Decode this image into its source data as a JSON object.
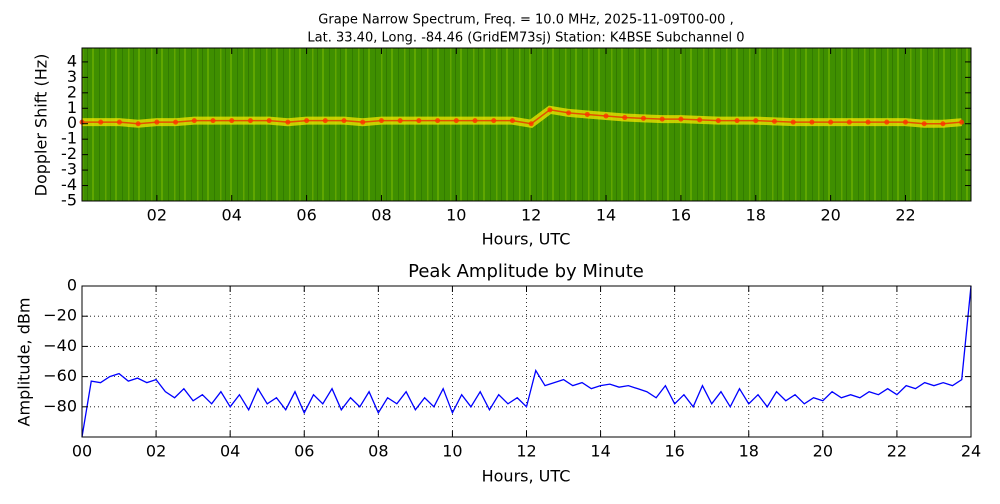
{
  "chart_data": [
    {
      "type": "spectrogram",
      "title": "Grape Narrow Spectrum, Freq. = 10.0 MHz, 2025-11-09T00-00 ,",
      "subtitle": "Lat.  33.40, Long. -84.46 (GridEM73sj) Station: K4BSE Subchannel 0",
      "x_label": "Hours, UTC",
      "y_label": "Doppler Shift (Hz)",
      "background_color": "#3f8f00",
      "color": "#f5e600",
      "x": [
        0,
        0.5,
        1,
        1.5,
        2,
        2.5,
        3,
        3.5,
        4,
        4.5,
        5,
        5.5,
        6,
        6.5,
        7,
        7.5,
        8,
        8.5,
        9,
        9.5,
        10,
        10.5,
        11,
        11.5,
        12,
        12.5,
        13,
        13.5,
        14,
        14.5,
        15,
        15.5,
        16,
        16.5,
        17,
        17.5,
        18,
        18.5,
        19,
        19.5,
        20,
        20.5,
        21,
        21.5,
        22,
        22.5,
        23,
        23.5
      ],
      "values": [
        0.1,
        0.1,
        0.1,
        0.0,
        0.1,
        0.1,
        0.2,
        0.2,
        0.2,
        0.2,
        0.2,
        0.1,
        0.2,
        0.2,
        0.2,
        0.1,
        0.2,
        0.2,
        0.2,
        0.2,
        0.2,
        0.2,
        0.2,
        0.2,
        0.0,
        0.9,
        0.7,
        0.6,
        0.5,
        0.4,
        0.35,
        0.3,
        0.3,
        0.25,
        0.2,
        0.2,
        0.2,
        0.15,
        0.1,
        0.1,
        0.1,
        0.1,
        0.1,
        0.1,
        0.1,
        0.0,
        0.0,
        0.1
      ],
      "xlim": [
        0,
        23.75
      ],
      "ylim": [
        -5,
        4.9
      ],
      "xticks": [
        {
          "value": 2,
          "label": "02"
        },
        {
          "value": 4,
          "label": "04"
        },
        {
          "value": 6,
          "label": "06"
        },
        {
          "value": 8,
          "label": "08"
        },
        10,
        12,
        14,
        16,
        18,
        20,
        22
      ],
      "yticks": [
        -5,
        -4,
        -3,
        -2,
        -1,
        0,
        1,
        2,
        3,
        4
      ],
      "grid": false
    },
    {
      "type": "line",
      "title": "Peak Amplitude by Minute",
      "x_label": "Hours, UTC",
      "y_label": "Amplitude, dBm",
      "color": "#0000ff",
      "x": [
        0,
        0.25,
        0.5,
        0.75,
        1,
        1.25,
        1.5,
        1.75,
        2,
        2.25,
        2.5,
        2.75,
        3,
        3.25,
        3.5,
        3.75,
        4,
        4.25,
        4.5,
        4.75,
        5,
        5.25,
        5.5,
        5.75,
        6,
        6.25,
        6.5,
        6.75,
        7,
        7.25,
        7.5,
        7.75,
        8,
        8.25,
        8.5,
        8.75,
        9,
        9.25,
        9.5,
        9.75,
        10,
        10.25,
        10.5,
        10.75,
        11,
        11.25,
        11.5,
        11.75,
        12,
        12.25,
        12.5,
        12.75,
        13,
        13.25,
        13.5,
        13.75,
        14,
        14.25,
        14.5,
        14.75,
        15,
        15.25,
        15.5,
        15.75,
        16,
        16.25,
        16.5,
        16.75,
        17,
        17.25,
        17.5,
        17.75,
        18,
        18.25,
        18.5,
        18.75,
        19,
        19.25,
        19.5,
        19.75,
        20,
        20.25,
        20.5,
        20.75,
        21,
        21.25,
        21.5,
        21.75,
        22,
        22.25,
        22.5,
        22.75,
        23,
        23.25,
        23.5,
        23.75,
        24
      ],
      "values": [
        -100,
        -63,
        -64,
        -60,
        -58,
        -63,
        -61,
        -64,
        -62,
        -70,
        -74,
        -68,
        -76,
        -72,
        -78,
        -70,
        -80,
        -72,
        -82,
        -68,
        -78,
        -74,
        -82,
        -70,
        -84,
        -72,
        -78,
        -68,
        -82,
        -74,
        -80,
        -70,
        -84,
        -74,
        -78,
        -70,
        -82,
        -74,
        -80,
        -68,
        -84,
        -72,
        -80,
        -70,
        -82,
        -72,
        -78,
        -74,
        -80,
        -56,
        -66,
        -64,
        -62,
        -66,
        -64,
        -68,
        -66,
        -65,
        -67,
        -66,
        -68,
        -70,
        -74,
        -66,
        -78,
        -72,
        -80,
        -66,
        -78,
        -70,
        -80,
        -68,
        -78,
        -72,
        -80,
        -70,
        -76,
        -72,
        -78,
        -74,
        -76,
        -70,
        -74,
        -72,
        -74,
        -70,
        -72,
        -68,
        -72,
        -66,
        -68,
        -64,
        -66,
        -64,
        -66,
        -62,
        0
      ],
      "xlim": [
        0,
        24
      ],
      "ylim": [
        -100,
        0
      ],
      "xticks": [
        {
          "value": 0,
          "label": "00"
        },
        {
          "value": 2,
          "label": "02"
        },
        {
          "value": 4,
          "label": "04"
        },
        {
          "value": 6,
          "label": "06"
        },
        {
          "value": 8,
          "label": "08"
        },
        10,
        12,
        14,
        16,
        18,
        20,
        22,
        24
      ],
      "yticks": [
        {
          "value": -80,
          "label": "−80"
        },
        {
          "value": -60,
          "label": "−60"
        },
        {
          "value": -40,
          "label": "−40"
        },
        {
          "value": -20,
          "label": "−20"
        },
        0
      ],
      "grid": true
    }
  ]
}
